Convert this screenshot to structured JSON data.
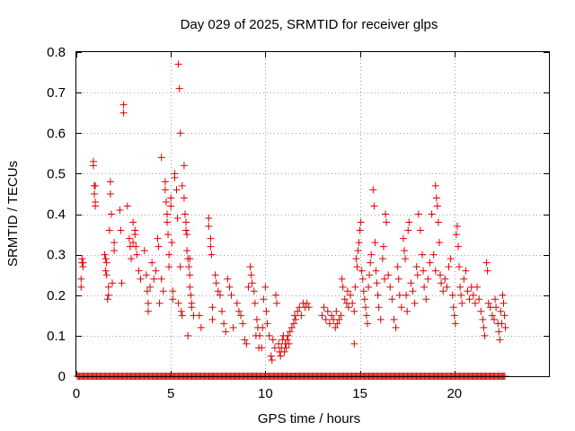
{
  "chart_data": {
    "type": "scatter",
    "title": "Day 029 of 2025, SRMTID for receiver glps",
    "xlabel": "GPS time / hours",
    "ylabel": "SRMTID / TECUs",
    "xlim": [
      0,
      25
    ],
    "ylim": [
      0,
      0.8
    ],
    "xticks": [
      0,
      5,
      10,
      15,
      20
    ],
    "yticks": [
      0,
      0.1,
      0.2,
      0.3,
      0.4,
      0.5,
      0.6,
      0.7,
      0.8
    ],
    "ytick_labels": [
      "0",
      "0.1",
      "0.2",
      "0.3",
      "0.4",
      "0.5",
      "0.6",
      "0.7",
      "0.8"
    ],
    "grid": true,
    "marker": "+",
    "color": "#e00000",
    "zero_baseline": {
      "x_start": 0.05,
      "x_end": 22.7,
      "step": 0.06,
      "y": 0
    },
    "series": [
      {
        "name": "SRMTID",
        "points": [
          [
            0.25,
            0.22
          ],
          [
            0.25,
            0.24
          ],
          [
            0.3,
            0.28
          ],
          [
            0.3,
            0.29
          ],
          [
            0.35,
            0.28
          ],
          [
            0.35,
            0.27
          ],
          [
            0.9,
            0.53
          ],
          [
            0.9,
            0.52
          ],
          [
            0.95,
            0.47
          ],
          [
            0.95,
            0.45
          ],
          [
            1.0,
            0.43
          ],
          [
            1.0,
            0.42
          ],
          [
            1.0,
            0.47
          ],
          [
            1.5,
            0.3
          ],
          [
            1.55,
            0.29
          ],
          [
            1.55,
            0.26
          ],
          [
            1.6,
            0.28
          ],
          [
            1.6,
            0.25
          ],
          [
            1.7,
            0.22
          ],
          [
            1.7,
            0.2
          ],
          [
            1.65,
            0.19
          ],
          [
            1.8,
            0.48
          ],
          [
            1.8,
            0.45
          ],
          [
            1.75,
            0.36
          ],
          [
            1.85,
            0.4
          ],
          [
            1.9,
            0.23
          ],
          [
            2.0,
            0.33
          ],
          [
            2.0,
            0.31
          ],
          [
            2.3,
            0.41
          ],
          [
            2.35,
            0.36
          ],
          [
            2.4,
            0.23
          ],
          [
            2.5,
            0.67
          ],
          [
            2.5,
            0.65
          ],
          [
            2.7,
            0.42
          ],
          [
            2.8,
            0.34
          ],
          [
            2.85,
            0.32
          ],
          [
            2.9,
            0.29
          ],
          [
            3.0,
            0.38
          ],
          [
            3.0,
            0.33
          ],
          [
            3.1,
            0.36
          ],
          [
            3.1,
            0.35
          ],
          [
            3.15,
            0.32
          ],
          [
            3.2,
            0.3
          ],
          [
            3.3,
            0.26
          ],
          [
            3.4,
            0.24
          ],
          [
            3.6,
            0.31
          ],
          [
            3.7,
            0.25
          ],
          [
            3.75,
            0.21
          ],
          [
            3.8,
            0.18
          ],
          [
            3.8,
            0.16
          ],
          [
            3.9,
            0.22
          ],
          [
            4.0,
            0.28
          ],
          [
            4.1,
            0.24
          ],
          [
            4.2,
            0.26
          ],
          [
            4.3,
            0.34
          ],
          [
            4.35,
            0.32
          ],
          [
            4.4,
            0.18
          ],
          [
            4.5,
            0.54
          ],
          [
            4.5,
            0.24
          ],
          [
            4.6,
            0.21
          ],
          [
            4.7,
            0.48
          ],
          [
            4.7,
            0.46
          ],
          [
            4.75,
            0.43
          ],
          [
            4.8,
            0.4
          ],
          [
            4.8,
            0.38
          ],
          [
            4.85,
            0.35
          ],
          [
            4.9,
            0.3
          ],
          [
            4.9,
            0.27
          ],
          [
            5.0,
            0.44
          ],
          [
            5.0,
            0.42
          ],
          [
            5.05,
            0.33
          ],
          [
            5.1,
            0.21
          ],
          [
            5.1,
            0.19
          ],
          [
            5.2,
            0.5
          ],
          [
            5.2,
            0.49
          ],
          [
            5.3,
            0.46
          ],
          [
            5.35,
            0.39
          ],
          [
            5.4,
            0.18
          ],
          [
            5.45,
            0.71
          ],
          [
            5.4,
            0.77
          ],
          [
            5.5,
            0.6
          ],
          [
            5.5,
            0.27
          ],
          [
            5.55,
            0.16
          ],
          [
            5.6,
            0.15
          ],
          [
            5.6,
            0.47
          ],
          [
            5.7,
            0.52
          ],
          [
            5.7,
            0.44
          ],
          [
            5.75,
            0.4
          ],
          [
            5.8,
            0.38
          ],
          [
            5.8,
            0.36
          ],
          [
            5.85,
            0.35
          ],
          [
            5.85,
            0.31
          ],
          [
            5.9,
            0.29
          ],
          [
            5.95,
            0.27
          ],
          [
            6.0,
            0.25
          ],
          [
            6.0,
            0.22
          ],
          [
            6.05,
            0.2
          ],
          [
            6.1,
            0.18
          ],
          [
            5.9,
            0.1
          ],
          [
            6.0,
            0.29
          ],
          [
            6.1,
            0.17
          ],
          [
            6.2,
            0.15
          ],
          [
            6.5,
            0.15
          ],
          [
            6.6,
            0.12
          ],
          [
            7.0,
            0.39
          ],
          [
            7.0,
            0.37
          ],
          [
            7.1,
            0.34
          ],
          [
            7.1,
            0.32
          ],
          [
            7.15,
            0.3
          ],
          [
            7.2,
            0.17
          ],
          [
            7.2,
            0.14
          ],
          [
            7.35,
            0.25
          ],
          [
            7.4,
            0.23
          ],
          [
            7.5,
            0.21
          ],
          [
            7.6,
            0.2
          ],
          [
            7.7,
            0.16
          ],
          [
            7.8,
            0.13
          ],
          [
            7.9,
            0.11
          ],
          [
            8.0,
            0.24
          ],
          [
            8.1,
            0.22
          ],
          [
            8.2,
            0.2
          ],
          [
            8.3,
            0.12
          ],
          [
            8.5,
            0.18
          ],
          [
            8.6,
            0.16
          ],
          [
            8.7,
            0.15
          ],
          [
            8.8,
            0.13
          ],
          [
            8.9,
            0.09
          ],
          [
            9.0,
            0.08
          ],
          [
            9.1,
            0.22
          ],
          [
            9.2,
            0.27
          ],
          [
            9.25,
            0.25
          ],
          [
            9.3,
            0.23
          ],
          [
            9.4,
            0.21
          ],
          [
            9.45,
            0.18
          ],
          [
            9.5,
            0.1
          ],
          [
            9.55,
            0.14
          ],
          [
            9.6,
            0.12
          ],
          [
            9.65,
            0.07
          ],
          [
            9.7,
            0.1
          ],
          [
            9.8,
            0.07
          ],
          [
            9.85,
            0.12
          ],
          [
            9.9,
            0.19
          ],
          [
            10.0,
            0.22
          ],
          [
            10.05,
            0.16
          ],
          [
            10.1,
            0.13
          ],
          [
            10.2,
            0.1
          ],
          [
            10.3,
            0.05
          ],
          [
            10.35,
            0.04
          ],
          [
            10.4,
            0.09
          ],
          [
            10.5,
            0.07
          ],
          [
            10.55,
            0.2
          ],
          [
            10.6,
            0.18
          ],
          [
            10.7,
            0.08
          ],
          [
            10.75,
            0.06
          ],
          [
            10.8,
            0.05
          ],
          [
            10.85,
            0.07
          ],
          [
            10.9,
            0.09
          ],
          [
            10.95,
            0.1
          ],
          [
            11.0,
            0.06
          ],
          [
            11.05,
            0.08
          ],
          [
            11.1,
            0.07
          ],
          [
            11.15,
            0.09
          ],
          [
            11.2,
            0.1
          ],
          [
            11.25,
            0.08
          ],
          [
            11.3,
            0.11
          ],
          [
            11.4,
            0.12
          ],
          [
            11.5,
            0.13
          ],
          [
            11.55,
            0.15
          ],
          [
            11.6,
            0.14
          ],
          [
            11.7,
            0.16
          ],
          [
            11.8,
            0.17
          ],
          [
            11.9,
            0.15
          ],
          [
            12.0,
            0.18
          ],
          [
            12.1,
            0.17
          ],
          [
            12.2,
            0.18
          ],
          [
            12.3,
            0.17
          ],
          [
            13.0,
            0.15
          ],
          [
            13.1,
            0.17
          ],
          [
            13.2,
            0.14
          ],
          [
            13.3,
            0.16
          ],
          [
            13.4,
            0.13
          ],
          [
            13.5,
            0.15
          ],
          [
            13.6,
            0.14
          ],
          [
            13.7,
            0.12
          ],
          [
            13.75,
            0.16
          ],
          [
            13.8,
            0.13
          ],
          [
            13.9,
            0.14
          ],
          [
            14.0,
            0.15
          ],
          [
            14.05,
            0.24
          ],
          [
            14.1,
            0.22
          ],
          [
            14.2,
            0.19
          ],
          [
            14.3,
            0.18
          ],
          [
            14.35,
            0.21
          ],
          [
            14.4,
            0.17
          ],
          [
            14.5,
            0.2
          ],
          [
            14.6,
            0.18
          ],
          [
            14.7,
            0.16
          ],
          [
            14.7,
            0.08
          ],
          [
            14.75,
            0.22
          ],
          [
            14.8,
            0.29
          ],
          [
            14.85,
            0.27
          ],
          [
            14.9,
            0.31
          ],
          [
            14.95,
            0.33
          ],
          [
            15.0,
            0.36
          ],
          [
            15.05,
            0.38
          ],
          [
            15.1,
            0.26
          ],
          [
            15.15,
            0.24
          ],
          [
            15.2,
            0.21
          ],
          [
            15.25,
            0.19
          ],
          [
            15.3,
            0.17
          ],
          [
            15.35,
            0.15
          ],
          [
            15.4,
            0.13
          ],
          [
            15.45,
            0.22
          ],
          [
            15.5,
            0.25
          ],
          [
            15.55,
            0.28
          ],
          [
            15.6,
            0.3
          ],
          [
            15.7,
            0.46
          ],
          [
            15.75,
            0.42
          ],
          [
            15.8,
            0.33
          ],
          [
            15.85,
            0.26
          ],
          [
            15.9,
            0.23
          ],
          [
            15.95,
            0.2
          ],
          [
            16.0,
            0.17
          ],
          [
            16.1,
            0.14
          ],
          [
            16.2,
            0.29
          ],
          [
            16.25,
            0.32
          ],
          [
            16.3,
            0.24
          ],
          [
            16.35,
            0.4
          ],
          [
            16.4,
            0.38
          ],
          [
            16.5,
            0.25
          ],
          [
            16.6,
            0.22
          ],
          [
            16.7,
            0.19
          ],
          [
            16.8,
            0.14
          ],
          [
            16.9,
            0.12
          ],
          [
            17.0,
            0.27
          ],
          [
            17.05,
            0.24
          ],
          [
            17.1,
            0.2
          ],
          [
            17.2,
            0.17
          ],
          [
            17.3,
            0.34
          ],
          [
            17.35,
            0.31
          ],
          [
            17.4,
            0.29
          ],
          [
            17.45,
            0.2
          ],
          [
            17.5,
            0.16
          ],
          [
            17.55,
            0.36
          ],
          [
            17.6,
            0.38
          ],
          [
            17.7,
            0.23
          ],
          [
            17.8,
            0.21
          ],
          [
            17.9,
            0.18
          ],
          [
            18.0,
            0.27
          ],
          [
            18.05,
            0.25
          ],
          [
            18.1,
            0.4
          ],
          [
            18.2,
            0.36
          ],
          [
            18.3,
            0.3
          ],
          [
            18.35,
            0.26
          ],
          [
            18.4,
            0.22
          ],
          [
            18.5,
            0.19
          ],
          [
            18.6,
            0.24
          ],
          [
            18.7,
            0.28
          ],
          [
            18.8,
            0.4
          ],
          [
            18.9,
            0.3
          ],
          [
            19.0,
            0.26
          ],
          [
            19.0,
            0.47
          ],
          [
            19.05,
            0.44
          ],
          [
            19.1,
            0.42
          ],
          [
            19.15,
            0.38
          ],
          [
            19.2,
            0.33
          ],
          [
            19.25,
            0.25
          ],
          [
            19.3,
            0.23
          ],
          [
            19.4,
            0.21
          ],
          [
            19.5,
            0.24
          ],
          [
            19.6,
            0.22
          ],
          [
            19.7,
            0.27
          ],
          [
            19.8,
            0.29
          ],
          [
            19.9,
            0.2
          ],
          [
            19.95,
            0.17
          ],
          [
            20.0,
            0.15
          ],
          [
            20.05,
            0.13
          ],
          [
            20.1,
            0.35
          ],
          [
            20.15,
            0.37
          ],
          [
            20.2,
            0.32
          ],
          [
            20.25,
            0.27
          ],
          [
            20.3,
            0.22
          ],
          [
            20.35,
            0.2
          ],
          [
            20.4,
            0.18
          ],
          [
            20.5,
            0.24
          ],
          [
            20.6,
            0.26
          ],
          [
            20.7,
            0.21
          ],
          [
            20.8,
            0.19
          ],
          [
            20.9,
            0.22
          ],
          [
            21.0,
            0.2
          ],
          [
            21.1,
            0.18
          ],
          [
            21.2,
            0.22
          ],
          [
            21.3,
            0.19
          ],
          [
            21.4,
            0.16
          ],
          [
            21.5,
            0.14
          ],
          [
            21.55,
            0.12
          ],
          [
            21.6,
            0.1
          ],
          [
            21.7,
            0.28
          ],
          [
            21.75,
            0.26
          ],
          [
            21.8,
            0.18
          ],
          [
            21.9,
            0.17
          ],
          [
            22.0,
            0.15
          ],
          [
            22.1,
            0.14
          ],
          [
            22.15,
            0.19
          ],
          [
            22.2,
            0.17
          ],
          [
            22.3,
            0.13
          ],
          [
            22.35,
            0.11
          ],
          [
            22.4,
            0.09
          ],
          [
            22.45,
            0.16
          ],
          [
            22.5,
            0.13
          ],
          [
            22.55,
            0.2
          ],
          [
            22.6,
            0.18
          ],
          [
            22.65,
            0.15
          ],
          [
            22.7,
            0.12
          ]
        ]
      }
    ]
  }
}
